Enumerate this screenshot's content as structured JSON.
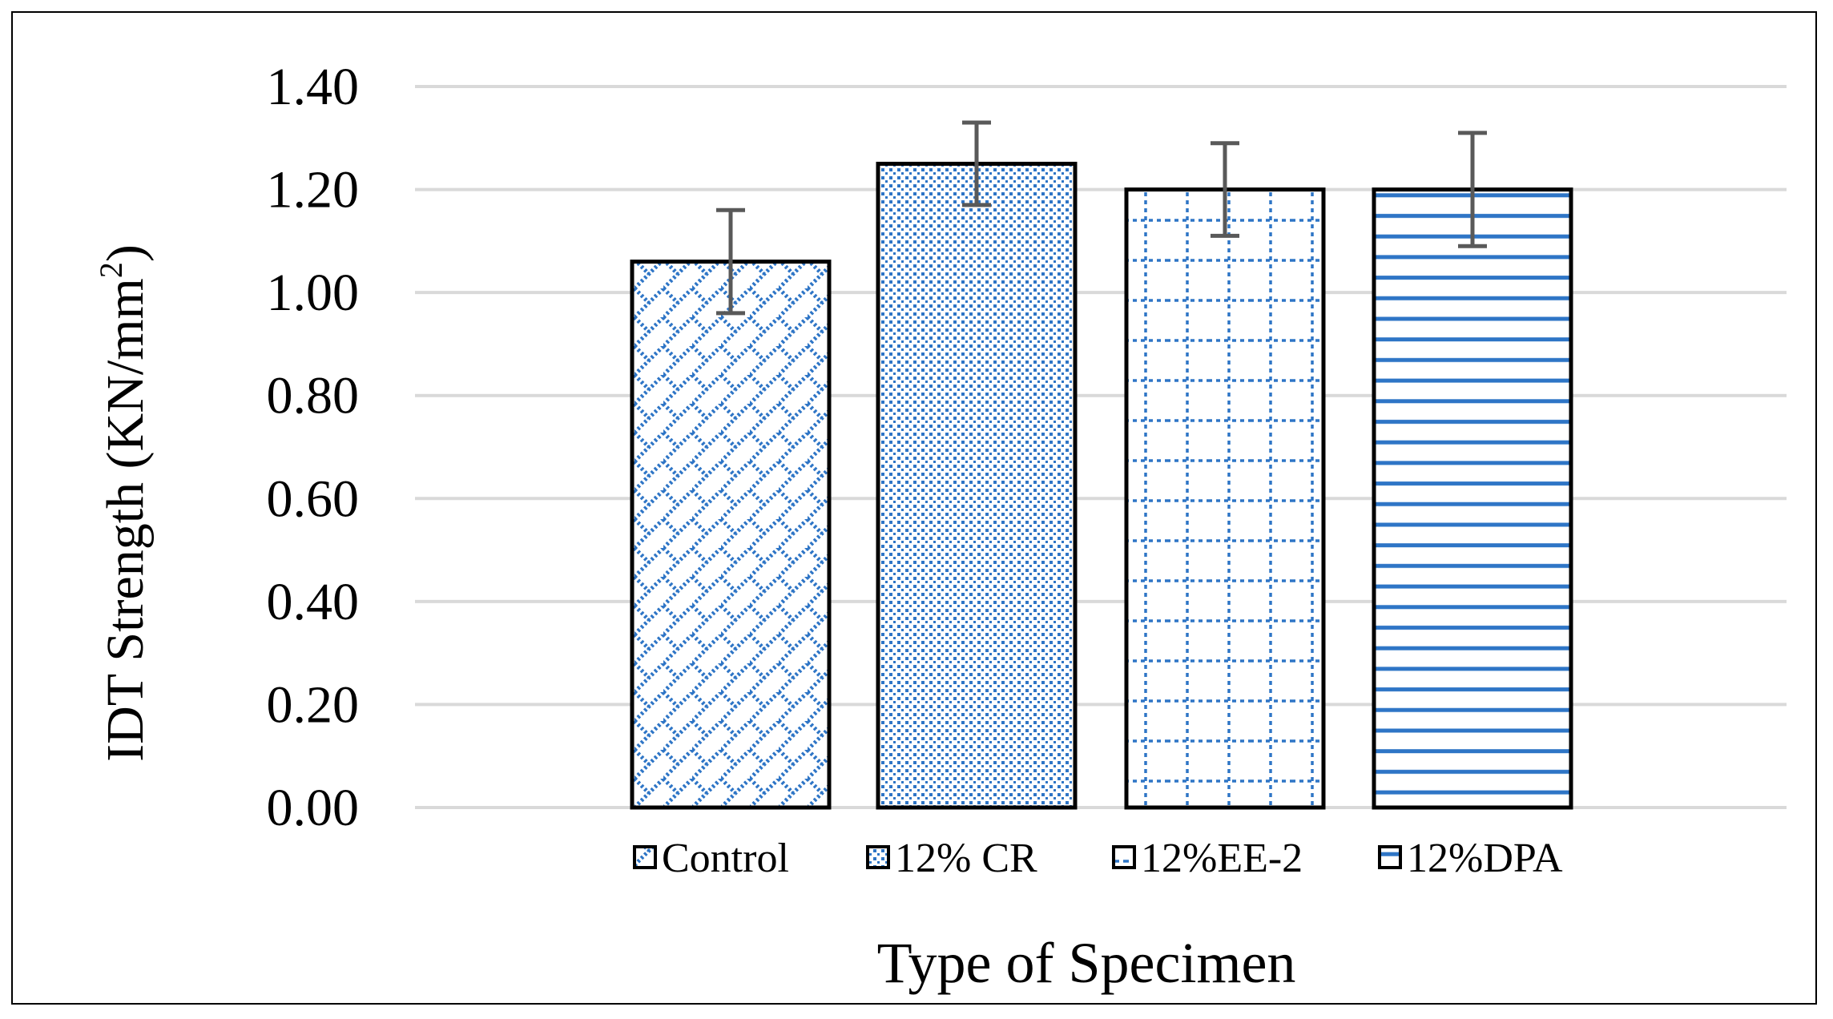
{
  "chart_data": {
    "type": "bar",
    "title": "",
    "xlabel": "Type of Specimen",
    "ylabel": "IDT Strength (KN/mm²)",
    "ylabel_parts": {
      "main": "IDT Strength (KN/mm",
      "sup": "2",
      "close": ")"
    },
    "ylim": [
      0,
      1.4
    ],
    "ytick_step": 0.2,
    "ytick_labels": [
      "0.00",
      "0.20",
      "0.40",
      "0.60",
      "0.80",
      "1.00",
      "1.20",
      "1.40"
    ],
    "grid": true,
    "legend_position": "bottom",
    "series": [
      {
        "name": "Control",
        "value": 1.06,
        "error": 0.1,
        "pattern": "diagonal-brick"
      },
      {
        "name": "12% CR",
        "value": 1.25,
        "error": 0.08,
        "pattern": "dotted-grid"
      },
      {
        "name": "12%EE-2",
        "value": 1.2,
        "error": 0.09,
        "pattern": "dashed-grid"
      },
      {
        "name": "12%DPA",
        "value": 1.2,
        "error": 0.11,
        "pattern": "horizontal-stripes"
      }
    ],
    "colors": {
      "pattern": "#2e75c6",
      "outline": "#000000",
      "gridline": "#d9d9d9",
      "errorbar": "#595959"
    }
  }
}
